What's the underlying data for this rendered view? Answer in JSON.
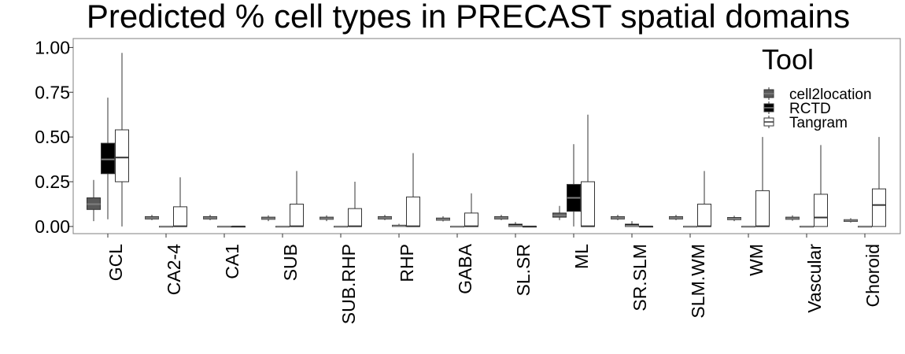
{
  "chart_data": {
    "type": "boxplot",
    "title": "Predicted % cell types in PRECAST spatial domains",
    "xlabel": "",
    "ylabel": "",
    "ylim": [
      -0.04,
      1.05
    ],
    "y_ticks": [
      "0.00",
      "0.25",
      "0.50",
      "0.75",
      "1.00"
    ],
    "categories": [
      "GCL",
      "CA2-4",
      "CA1",
      "SUB",
      "SUB.RHP",
      "RHP",
      "GABA",
      "SL.SR",
      "ML",
      "SR.SLM",
      "SLM.WM",
      "WM",
      "Vascular",
      "Choroid"
    ],
    "legend": {
      "title": "Tool",
      "position": "top-right"
    },
    "grid": false,
    "series": [
      {
        "name": "cell2location",
        "color": "#595959",
        "boxes": [
          {
            "min": 0.03,
            "q1": 0.095,
            "median": 0.125,
            "q3": 0.16,
            "max": 0.26
          },
          {
            "min": 0.035,
            "q1": 0.042,
            "median": 0.048,
            "q3": 0.055,
            "max": 0.065
          },
          {
            "min": 0.035,
            "q1": 0.042,
            "median": 0.048,
            "q3": 0.055,
            "max": 0.065
          },
          {
            "min": 0.03,
            "q1": 0.04,
            "median": 0.045,
            "q3": 0.052,
            "max": 0.062
          },
          {
            "min": 0.03,
            "q1": 0.04,
            "median": 0.045,
            "q3": 0.052,
            "max": 0.062
          },
          {
            "min": 0.035,
            "q1": 0.042,
            "median": 0.048,
            "q3": 0.055,
            "max": 0.065
          },
          {
            "min": 0.028,
            "q1": 0.035,
            "median": 0.04,
            "q3": 0.047,
            "max": 0.057
          },
          {
            "min": 0.035,
            "q1": 0.042,
            "median": 0.048,
            "q3": 0.055,
            "max": 0.065
          },
          {
            "min": 0.035,
            "q1": 0.052,
            "median": 0.062,
            "q3": 0.075,
            "max": 0.115
          },
          {
            "min": 0.035,
            "q1": 0.042,
            "median": 0.048,
            "q3": 0.055,
            "max": 0.065
          },
          {
            "min": 0.035,
            "q1": 0.042,
            "median": 0.048,
            "q3": 0.055,
            "max": 0.065
          },
          {
            "min": 0.03,
            "q1": 0.038,
            "median": 0.043,
            "q3": 0.05,
            "max": 0.06
          },
          {
            "min": 0.032,
            "q1": 0.04,
            "median": 0.045,
            "q3": 0.052,
            "max": 0.062
          },
          {
            "min": 0.022,
            "q1": 0.028,
            "median": 0.033,
            "q3": 0.038,
            "max": 0.046
          }
        ]
      },
      {
        "name": "RCTD",
        "color": "#000000",
        "boxes": [
          {
            "min": 0.04,
            "q1": 0.295,
            "median": 0.375,
            "q3": 0.465,
            "max": 0.72
          },
          {
            "min": 0.0,
            "q1": 0.0,
            "median": 0.0,
            "q3": 0.001,
            "max": 0.003
          },
          {
            "min": 0.0,
            "q1": 0.0,
            "median": 0.0,
            "q3": 0.001,
            "max": 0.002
          },
          {
            "min": 0.0,
            "q1": 0.0,
            "median": 0.0,
            "q3": 0.001,
            "max": 0.002
          },
          {
            "min": 0.0,
            "q1": 0.0,
            "median": 0.0,
            "q3": 0.001,
            "max": 0.002
          },
          {
            "min": 0.0,
            "q1": 0.0,
            "median": 0.002,
            "q3": 0.007,
            "max": 0.015
          },
          {
            "min": 0.0,
            "q1": 0.0,
            "median": 0.0,
            "q3": 0.001,
            "max": 0.002
          },
          {
            "min": 0.0,
            "q1": 0.0,
            "median": 0.004,
            "q3": 0.013,
            "max": 0.025
          },
          {
            "min": 0.0,
            "q1": 0.085,
            "median": 0.16,
            "q3": 0.235,
            "max": 0.46
          },
          {
            "min": 0.0,
            "q1": 0.0,
            "median": 0.004,
            "q3": 0.013,
            "max": 0.03
          },
          {
            "min": 0.0,
            "q1": 0.0,
            "median": 0.0,
            "q3": 0.001,
            "max": 0.002
          },
          {
            "min": 0.0,
            "q1": 0.0,
            "median": 0.0,
            "q3": 0.001,
            "max": 0.002
          },
          {
            "min": 0.0,
            "q1": 0.0,
            "median": 0.0,
            "q3": 0.001,
            "max": 0.002
          },
          {
            "min": 0.0,
            "q1": 0.0,
            "median": 0.0,
            "q3": 0.001,
            "max": 0.002
          }
        ]
      },
      {
        "name": "Tangram",
        "color": "#ffffff",
        "boxes": [
          {
            "min": 0.0,
            "q1": 0.25,
            "median": 0.385,
            "q3": 0.54,
            "max": 0.97
          },
          {
            "min": 0.0,
            "q1": 0.0,
            "median": 0.001,
            "q3": 0.11,
            "max": 0.275
          },
          {
            "min": 0.0,
            "q1": 0.0,
            "median": 0.0,
            "q3": 0.001,
            "max": 0.002
          },
          {
            "min": 0.0,
            "q1": 0.0,
            "median": 0.001,
            "q3": 0.125,
            "max": 0.31
          },
          {
            "min": 0.0,
            "q1": 0.0,
            "median": 0.001,
            "q3": 0.1,
            "max": 0.25
          },
          {
            "min": 0.0,
            "q1": 0.0,
            "median": 0.001,
            "q3": 0.165,
            "max": 0.41
          },
          {
            "min": 0.0,
            "q1": 0.0,
            "median": 0.001,
            "q3": 0.075,
            "max": 0.185
          },
          {
            "min": 0.0,
            "q1": 0.0,
            "median": 0.0,
            "q3": 0.001,
            "max": 0.002
          },
          {
            "min": 0.0,
            "q1": 0.0,
            "median": 0.001,
            "q3": 0.25,
            "max": 0.625
          },
          {
            "min": 0.0,
            "q1": 0.0,
            "median": 0.0,
            "q3": 0.001,
            "max": 0.002
          },
          {
            "min": 0.0,
            "q1": 0.0,
            "median": 0.001,
            "q3": 0.125,
            "max": 0.31
          },
          {
            "min": 0.0,
            "q1": 0.0,
            "median": 0.001,
            "q3": 0.2,
            "max": 0.5
          },
          {
            "min": 0.0,
            "q1": 0.0,
            "median": 0.05,
            "q3": 0.18,
            "max": 0.455
          },
          {
            "min": 0.0,
            "q1": 0.0,
            "median": 0.12,
            "q3": 0.21,
            "max": 0.5
          }
        ]
      }
    ]
  }
}
